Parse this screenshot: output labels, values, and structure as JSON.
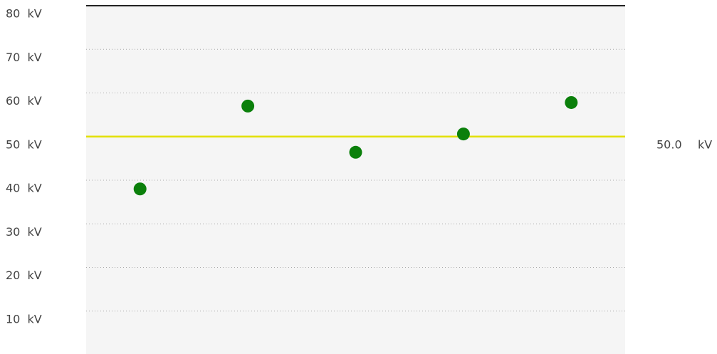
{
  "chart_data": {
    "type": "scatter",
    "categories": [
      null,
      null,
      null,
      null,
      null
    ],
    "series": [
      {
        "name": null,
        "color": "#0b800b",
        "values": [
          38,
          57,
          46.4,
          50.6,
          57.8
        ]
      }
    ],
    "ylim": [
      0,
      80
    ],
    "yticks": [
      {
        "value": 10,
        "label": "10  kV"
      },
      {
        "value": 20,
        "label": "20  kV"
      },
      {
        "value": 30,
        "label": "30  kV"
      },
      {
        "value": 40,
        "label": "40  kV"
      },
      {
        "value": 50,
        "label": "50  kV"
      },
      {
        "value": 60,
        "label": "60  kV"
      },
      {
        "value": 70,
        "label": "70  kV"
      },
      {
        "value": 80,
        "label": "80  kV"
      }
    ],
    "grid": true,
    "reference_line": {
      "value": 50,
      "label": "50.0",
      "unit": "kV",
      "color": "#e2e000"
    }
  }
}
